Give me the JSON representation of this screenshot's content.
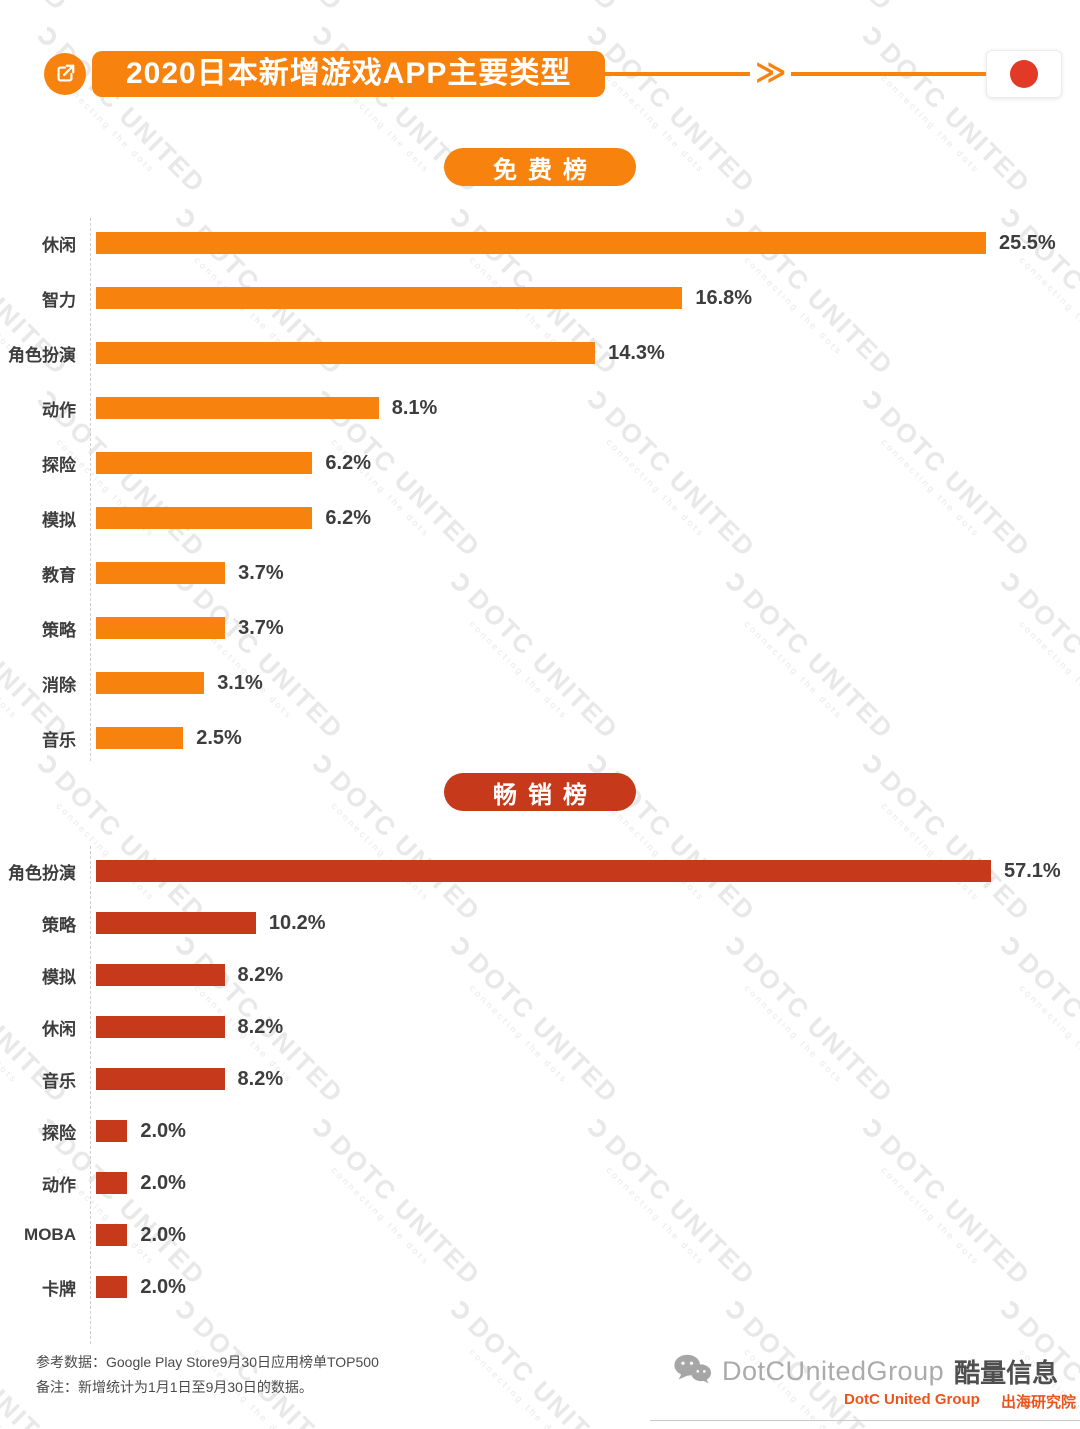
{
  "header": {
    "title": "2020日本新增游戏APP主要类型",
    "chevrons": "≫",
    "accent_color": "#F8820E",
    "flag": "japan-flag",
    "flag_colors": {
      "field": "#FFFFFF",
      "disc": "#E23A26"
    }
  },
  "watermark": {
    "brand": "DOTC UNITED",
    "tagline": "connecting the dots"
  },
  "chart_data": [
    {
      "type": "bar",
      "title": "免费榜",
      "orientation": "horizontal",
      "unit": "%",
      "color": "#F8820E",
      "xlim": [
        0,
        26
      ],
      "grid": false,
      "categories": [
        "休闲",
        "智力",
        "角色扮演",
        "动作",
        "探险",
        "模拟",
        "教育",
        "策略",
        "消除",
        "音乐"
      ],
      "values": [
        25.5,
        16.8,
        14.3,
        8.1,
        6.2,
        6.2,
        3.7,
        3.7,
        3.1,
        2.5
      ],
      "labels": [
        "25.5%",
        "16.8%",
        "14.3%",
        "8.1%",
        "6.2%",
        "6.2%",
        "3.7%",
        "3.7%",
        "3.1%",
        "2.5%"
      ]
    },
    {
      "type": "bar",
      "title": "畅销榜",
      "orientation": "horizontal",
      "unit": "%",
      "color": "#C6391A",
      "xlim": [
        0,
        58
      ],
      "grid": false,
      "categories": [
        "角色扮演",
        "策略",
        "模拟",
        "休闲",
        "音乐",
        "探险",
        "动作",
        "MOBA",
        "卡牌"
      ],
      "values": [
        57.1,
        10.2,
        8.2,
        8.2,
        8.2,
        2.0,
        2.0,
        2.0,
        2.0
      ],
      "labels": [
        "57.1%",
        "10.2%",
        "8.2%",
        "8.2%",
        "8.2%",
        "2.0%",
        "2.0%",
        "2.0%",
        "2.0%"
      ]
    }
  ],
  "footer": {
    "source": "参考数据：Google Play Store9月30日应用榜单TOP500",
    "note": "备注：新增统计为1月1日至9月30日的数据。",
    "brand_gray": "DotCUnitedGroup",
    "brand_dark": "酷量信息",
    "brand_orange_left": "DotC United Group",
    "brand_orange_right": "出海研究院"
  }
}
